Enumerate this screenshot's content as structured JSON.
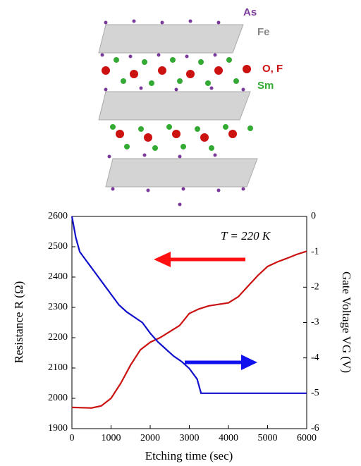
{
  "structure_labels": {
    "as": "As",
    "fe": "Fe",
    "of": "O, F",
    "sm": "Sm"
  },
  "chart_data": {
    "type": "line",
    "xlabel": "Etching time (sec)",
    "ylabel": "Resistance R (Ω)",
    "y2label": "Gate Voltage VG (V)",
    "annotation": "T = 220 K",
    "xlim": [
      0,
      6000
    ],
    "xticks": [
      0,
      1000,
      2000,
      3000,
      4000,
      5000,
      6000
    ],
    "ylim": [
      1900,
      2600
    ],
    "yticks": [
      1900,
      2000,
      2100,
      2200,
      2300,
      2400,
      2500,
      2600
    ],
    "y2lim": [
      -6,
      0
    ],
    "y2ticks": [
      0,
      -1,
      -2,
      -3,
      -4,
      -5,
      -6
    ],
    "series": [
      {
        "color": "#cc1111",
        "axis": "y",
        "x": [
          0,
          250,
          500,
          750,
          1000,
          1250,
          1500,
          1750,
          2000,
          2250,
          2500,
          2750,
          3000,
          3250,
          3500,
          3750,
          4000,
          4250,
          4500,
          4750,
          5000,
          5250,
          5500,
          5750,
          6000
        ],
        "values": [
          1970,
          1969,
          1968,
          1975,
          2000,
          2050,
          2110,
          2160,
          2185,
          2200,
          2220,
          2240,
          2280,
          2295,
          2305,
          2310,
          2315,
          2335,
          2370,
          2405,
          2435,
          2450,
          2462,
          2475,
          2485
        ]
      },
      {
        "color": "#1111cc",
        "axis": "y2",
        "x": [
          0,
          100,
          200,
          400,
          600,
          800,
          1000,
          1200,
          1400,
          1600,
          1800,
          2000,
          2200,
          2400,
          2600,
          2800,
          3000,
          3200,
          3300,
          6000
        ],
        "values": [
          0,
          -0.6,
          -1.0,
          -1.3,
          -1.6,
          -1.9,
          -2.2,
          -2.5,
          -2.7,
          -2.85,
          -3.0,
          -3.3,
          -3.55,
          -3.75,
          -3.95,
          -4.1,
          -4.3,
          -4.6,
          -5.0,
          -5.0
        ]
      }
    ]
  }
}
